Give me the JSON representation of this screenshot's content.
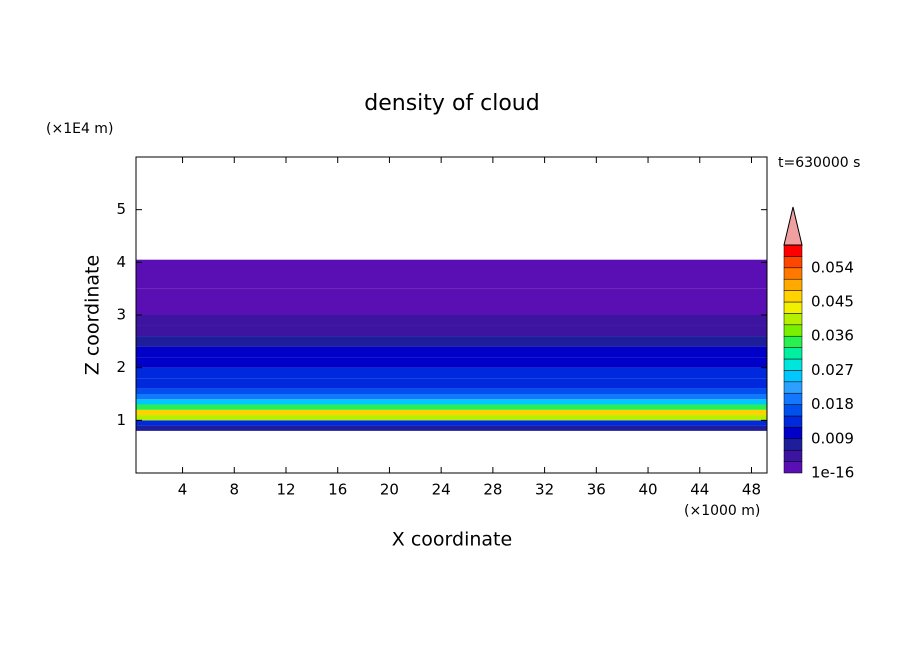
{
  "chart_data": {
    "type": "contour",
    "title": "density of cloud",
    "x_label": "X coordinate",
    "x_unit": "(×1000 m)",
    "y_label": "Z coordinate",
    "y_unit": "(×1E4 m)",
    "annotation": "t=630000 s",
    "xlim": [
      0.4,
      49.2
    ],
    "xticks": [
      4,
      8,
      12,
      16,
      20,
      24,
      28,
      32,
      36,
      40,
      44,
      48
    ],
    "ylim": [
      0,
      6
    ],
    "yticks": [
      1,
      2,
      3,
      4,
      5
    ],
    "z": [
      0.8,
      0.9,
      1.0,
      1.1,
      1.2,
      1.3,
      1.4,
      1.5,
      1.6,
      1.8,
      2.0,
      2.2,
      2.4,
      2.6,
      2.8,
      3.0,
      3.5,
      4.05
    ],
    "values": [
      0.006,
      0.012,
      0.04,
      0.045,
      0.033,
      0.024,
      0.02,
      0.017,
      0.014,
      0.012,
      0.009,
      0.01,
      0.007,
      0.004,
      0.003,
      0.002,
      0.0015
    ],
    "levels": [
      1e-16,
      0.003,
      0.006,
      0.009,
      0.012,
      0.015,
      0.018,
      0.021,
      0.024,
      0.027,
      0.03,
      0.033,
      0.036,
      0.039,
      0.042,
      0.045,
      0.048,
      0.051,
      0.054,
      0.057,
      0.06
    ],
    "colors": [
      "#5a0fb4",
      "#3c14a0",
      "#1e1e9b",
      "#0000c8",
      "#0028dc",
      "#0050f0",
      "#1478ff",
      "#2da0ff",
      "#00c8ff",
      "#00e6dc",
      "#00f0a0",
      "#28f050",
      "#78f000",
      "#b4f000",
      "#f0f000",
      "#ffd200",
      "#ffaa00",
      "#ff7800",
      "#ff4600",
      "#ff0000"
    ],
    "extend_color": "#f0a0a0",
    "colorbar_ticks": [
      1e-16,
      0.009,
      0.018,
      0.027,
      0.036,
      0.045,
      0.054
    ]
  }
}
